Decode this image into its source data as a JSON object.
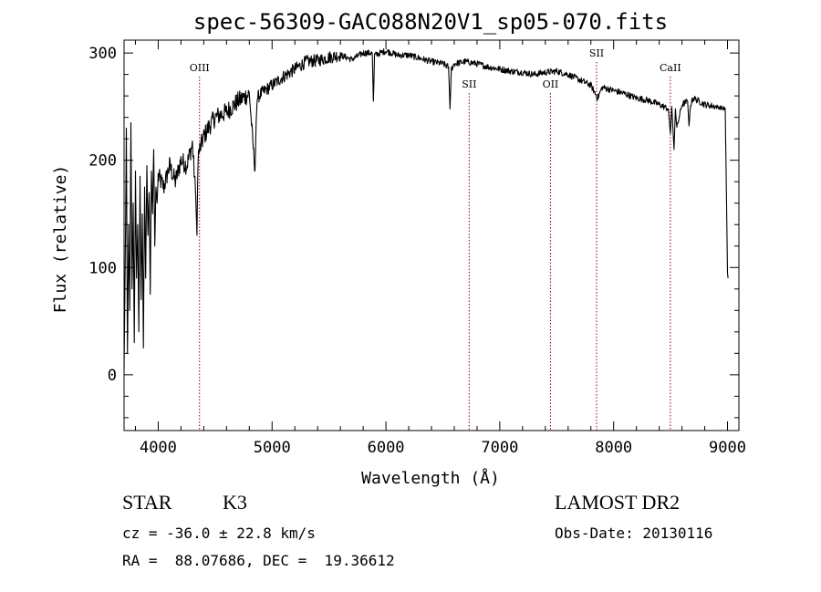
{
  "chart_data": {
    "type": "line",
    "title": "spec-56309-GAC088N20V1_sp05-070.fits",
    "xlabel": "Wavelength (Å)",
    "ylabel": "Flux (relative)",
    "xlim": [
      3700,
      9100
    ],
    "ylim": [
      -52,
      312
    ],
    "xticks": [
      4000,
      5000,
      6000,
      7000,
      8000,
      9000
    ],
    "yticks": [
      0,
      100,
      200,
      300
    ],
    "grid": false,
    "line_color": "#000000",
    "marker_color": "#8b0000",
    "spectrum": {
      "x": [
        3700,
        3710,
        3720,
        3730,
        3740,
        3750,
        3760,
        3770,
        3780,
        3790,
        3800,
        3810,
        3820,
        3830,
        3840,
        3850,
        3860,
        3870,
        3880,
        3890,
        3900,
        3910,
        3920,
        3930,
        3940,
        3950,
        3960,
        3970,
        3980,
        3990,
        4000,
        4050,
        4100,
        4150,
        4200,
        4250,
        4300,
        4330,
        4340,
        4350,
        4400,
        4450,
        4500,
        4600,
        4700,
        4800,
        4850,
        4860,
        4870,
        4900,
        5000,
        5100,
        5200,
        5300,
        5400,
        5500,
        5600,
        5700,
        5800,
        5880,
        5890,
        5900,
        6000,
        6100,
        6200,
        6300,
        6400,
        6500,
        6550,
        6563,
        6575,
        6600,
        6700,
        6800,
        6900,
        7000,
        7100,
        7200,
        7300,
        7400,
        7500,
        7600,
        7700,
        7800,
        7860,
        7900,
        8000,
        8100,
        8200,
        8300,
        8400,
        8480,
        8498,
        8510,
        8530,
        8542,
        8555,
        8600,
        8650,
        8662,
        8675,
        8700,
        8800,
        8900,
        8980,
        8990,
        9000,
        9005
      ],
      "y": [
        5,
        100,
        230,
        20,
        140,
        60,
        235,
        80,
        160,
        30,
        190,
        90,
        140,
        40,
        185,
        70,
        150,
        25,
        175,
        90,
        195,
        130,
        170,
        75,
        190,
        150,
        210,
        120,
        175,
        160,
        185,
        175,
        195,
        180,
        200,
        195,
        215,
        165,
        130,
        205,
        222,
        232,
        240,
        245,
        255,
        262,
        190,
        235,
        258,
        262,
        270,
        278,
        285,
        292,
        293,
        296,
        298,
        294,
        300,
        300,
        255,
        298,
        302,
        298,
        298,
        295,
        292,
        290,
        287,
        248,
        285,
        290,
        292,
        290,
        287,
        285,
        283,
        282,
        280,
        282,
        283,
        280,
        275,
        270,
        258,
        268,
        265,
        262,
        258,
        256,
        252,
        248,
        225,
        250,
        210,
        248,
        230,
        252,
        255,
        232,
        252,
        258,
        252,
        250,
        248,
        170,
        95,
        90
      ]
    },
    "lines": [
      {
        "name": "OIII",
        "x": 4363,
        "label_pos": "high"
      },
      {
        "name": "SII",
        "x": 6731,
        "label_pos": "low"
      },
      {
        "name": "OII",
        "x": 7445,
        "label_pos": "low"
      },
      {
        "name": "SII",
        "x": 7850,
        "label_pos": "top"
      },
      {
        "name": "CaII",
        "x": 8498,
        "label_pos": "high"
      }
    ]
  },
  "info": {
    "object_type": "STAR",
    "subclass": "K3",
    "survey": "LAMOST DR2",
    "redshift_line": "cz = -36.0 ± 22.8 km/s",
    "obs_date_line": "Obs-Date: 20130116",
    "coords_line": "RA =  88.07686, DEC =  19.36612"
  }
}
